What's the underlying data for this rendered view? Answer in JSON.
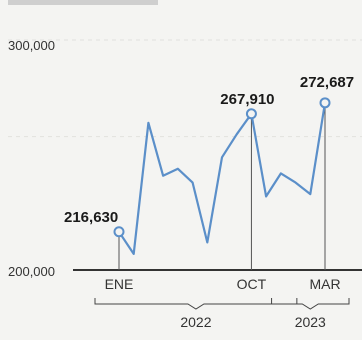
{
  "chart_data": {
    "type": "line",
    "title": "",
    "xlabel": "",
    "ylabel": "",
    "ylim": [
      200000,
      300000
    ],
    "yticks": [
      "300,000",
      "200,000"
    ],
    "grid": "horizontal dashed",
    "colors": {
      "line": "#5b8fc9",
      "marker": "#5b8fc9",
      "axis": "#333333",
      "guide": "#555555"
    },
    "x": [
      "2022-01",
      "2022-02",
      "2022-03",
      "2022-04",
      "2022-05",
      "2022-06",
      "2022-07",
      "2022-08",
      "2022-09",
      "2022-10",
      "2022-11",
      "2022-12",
      "2023-01",
      "2023-02",
      "2023-03"
    ],
    "series": [
      {
        "values": [
          216630,
          207000,
          264000,
          241000,
          244000,
          238000,
          212000,
          249000,
          259000,
          267910,
          232000,
          242000,
          238000,
          233000,
          272687
        ]
      }
    ],
    "callouts": [
      {
        "index": 0,
        "label": "216,630"
      },
      {
        "index": 9,
        "label": "267,910"
      },
      {
        "index": 14,
        "label": "272,687"
      }
    ],
    "month_labels": [
      {
        "index": 0,
        "label": "ENE"
      },
      {
        "index": 9,
        "label": "OCT"
      },
      {
        "index": 14,
        "label": "MAR"
      }
    ],
    "year_groups": [
      {
        "from": 0,
        "to": 11,
        "label": "2022"
      },
      {
        "from": 12,
        "to": 14,
        "label": "2023"
      }
    ]
  }
}
